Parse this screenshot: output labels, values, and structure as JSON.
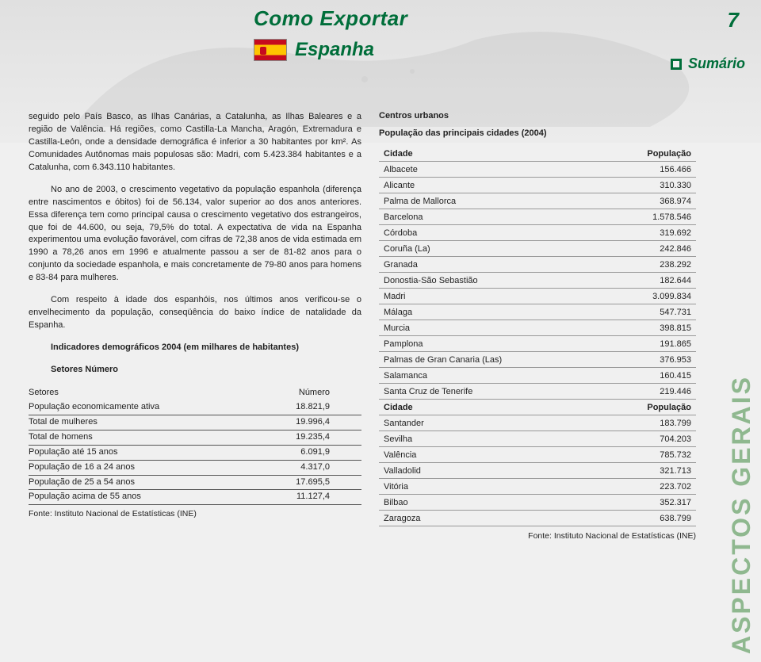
{
  "header": {
    "title": "Como Exportar",
    "subtitle": "Espanha",
    "page_number": "7",
    "sumario_label": "Sumário"
  },
  "sidebar_label": "ASPECTOS GERAIS",
  "body": {
    "p1": "seguido pelo País Basco, as Ilhas Canárias, a Catalunha, as Ilhas Baleares e a região de Valência. Há regiões, como Castilla-La Mancha, Aragón, Extremadura e Castilla-León, onde a densidade demográfica é inferior a 30 habitantes por km². As Comunidades Autônomas mais populosas são: Madri, com 5.423.384 habitantes e a Catalunha, com 6.343.110 habitantes.",
    "p2": "No ano de 2003, o crescimento vegetativo da população espanhola (diferença entre nascimentos e óbitos) foi de 56.134, valor superior ao dos anos anteriores. Essa diferença tem como principal causa o crescimento vegetativo dos estrangeiros, que foi de 44.600, ou seja, 79,5% do total. A expectativa de vida na Espanha experimentou uma evolução favorável, com cifras de 72,38 anos de vida estimada em 1990 a 78,26 anos em 1996 e atualmente passou a ser de 81-82 anos para o conjunto da sociedade espanhola, e mais concretamente de 79-80 anos para homens e 83-84 para mulheres.",
    "p3": "Com respeito à idade dos espanhóis, nos últimos anos verificou-se o envelhecimento da população, conseqüência do baixo índice de natalidade da Espanha.",
    "indic_h": "Indicadores demográficos 2004 (em milhares de habitantes)",
    "setnum": "Setores  Número"
  },
  "demo_table": {
    "col1": "Setores",
    "col2": "Número",
    "rows": [
      {
        "label": "População economicamente ativa",
        "value": "18.821,9"
      },
      {
        "label": "Total de mulheres",
        "value": "19.996,4"
      },
      {
        "label": "Total de homens",
        "value": "19.235,4"
      },
      {
        "label": "População até 15 anos",
        "value": "6.091,9"
      },
      {
        "label": "População de 16 a 24 anos",
        "value": "4.317,0"
      },
      {
        "label": "População de 25 a 54 anos",
        "value": "17.695,5"
      },
      {
        "label": "População acima de 55 anos",
        "value": "11.127,4"
      }
    ],
    "source": "Fonte: Instituto Nacional de Estatísticas (INE)"
  },
  "right": {
    "h1": "Centros urbanos",
    "h2": "População das principais cidades (2004)",
    "col1": "Cidade",
    "col2": "População",
    "col1b": "Cidade",
    "col2b": "População",
    "rows": [
      {
        "city": "Albacete",
        "pop": "156.466"
      },
      {
        "city": "Alicante",
        "pop": "310.330"
      },
      {
        "city": "Palma de Mallorca",
        "pop": "368.974"
      },
      {
        "city": "Barcelona",
        "pop": "1.578.546"
      },
      {
        "city": "Córdoba",
        "pop": "319.692"
      },
      {
        "city": "Coruña (La)",
        "pop": "242.846"
      },
      {
        "city": "Granada",
        "pop": "238.292"
      },
      {
        "city": "Donostia-São Sebastião",
        "pop": "182.644"
      },
      {
        "city": "Madri",
        "pop": "3.099.834"
      },
      {
        "city": "Málaga",
        "pop": "547.731"
      },
      {
        "city": "Murcia",
        "pop": "398.815"
      },
      {
        "city": "Pamplona",
        "pop": "191.865"
      },
      {
        "city": "Palmas de Gran Canaria (Las)",
        "pop": "376.953"
      },
      {
        "city": "Salamanca",
        "pop": "160.415"
      },
      {
        "city": "Santa Cruz de Tenerife",
        "pop": "219.446"
      }
    ],
    "rows2": [
      {
        "city": "Santander",
        "pop": "183.799"
      },
      {
        "city": "Sevilha",
        "pop": "704.203"
      },
      {
        "city": "Valência",
        "pop": "785.732"
      },
      {
        "city": "Valladolid",
        "pop": "321.713"
      },
      {
        "city": "Vitória",
        "pop": "223.702"
      },
      {
        "city": "Bilbao",
        "pop": "352.317"
      },
      {
        "city": "Zaragoza",
        "pop": "638.799"
      }
    ],
    "source": "Fonte: Instituto Nacional de Estatísticas (INE)"
  },
  "colors": {
    "green": "#006e3a",
    "sidebar": "#8fb88f",
    "bg": "#f0f0f0",
    "text": "#222222"
  }
}
